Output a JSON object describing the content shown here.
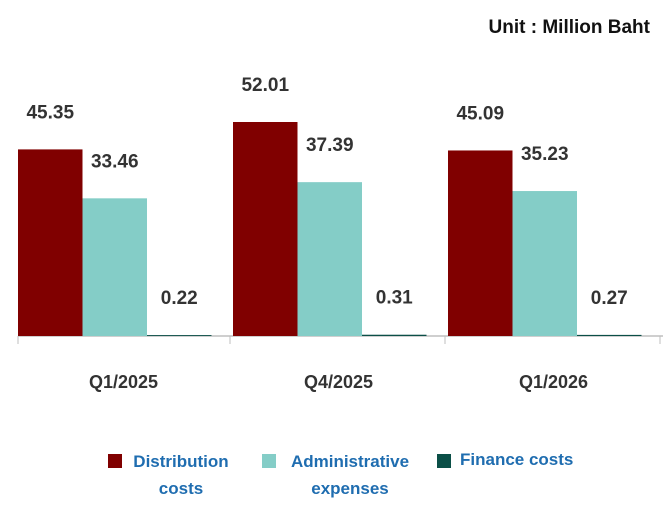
{
  "chart_data": {
    "type": "bar",
    "subtitle": "Unit : Million Baht",
    "categories": [
      "Q1/2025",
      "Q4/2025",
      "Q1/2026"
    ],
    "series": [
      {
        "name": "Distribution costs",
        "color": "#800000",
        "values": [
          45.35,
          52.01,
          45.09
        ]
      },
      {
        "name": "Administrative expenses",
        "color": "#84cdc7",
        "values": [
          33.46,
          37.39,
          35.23
        ]
      },
      {
        "name": "Finance costs",
        "color": "#0b4f47",
        "values": [
          0.22,
          0.31,
          0.27
        ]
      }
    ]
  }
}
